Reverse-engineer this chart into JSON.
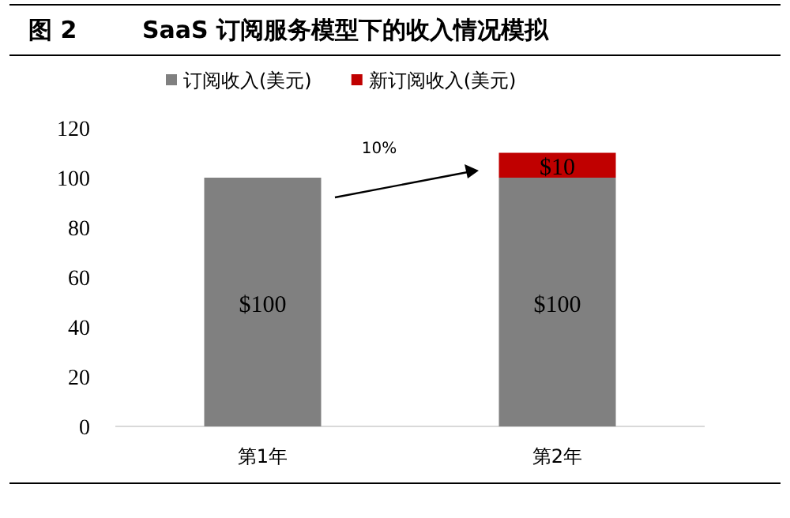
{
  "chart_data": {
    "type": "bar",
    "title": "SaaS 订阅服务模型下的收入情况模拟",
    "stacked": true,
    "legend": "top",
    "categories": [
      "第1年",
      "第2年"
    ],
    "series": [
      {
        "name": "订阅收入(美元)",
        "color": "#808080",
        "values": [
          100,
          100
        ],
        "value_labels": [
          "$100",
          "$100"
        ]
      },
      {
        "name": "新订阅收入(美元)",
        "color": "#c00000",
        "values": [
          null,
          10
        ],
        "value_labels": [
          null,
          "$10"
        ]
      }
    ],
    "ylim": [
      0,
      120
    ],
    "yticks": [
      0,
      20,
      40,
      60,
      80,
      100,
      120
    ],
    "grid": false,
    "annotations": [
      "图 2",
      "10%"
    ]
  }
}
